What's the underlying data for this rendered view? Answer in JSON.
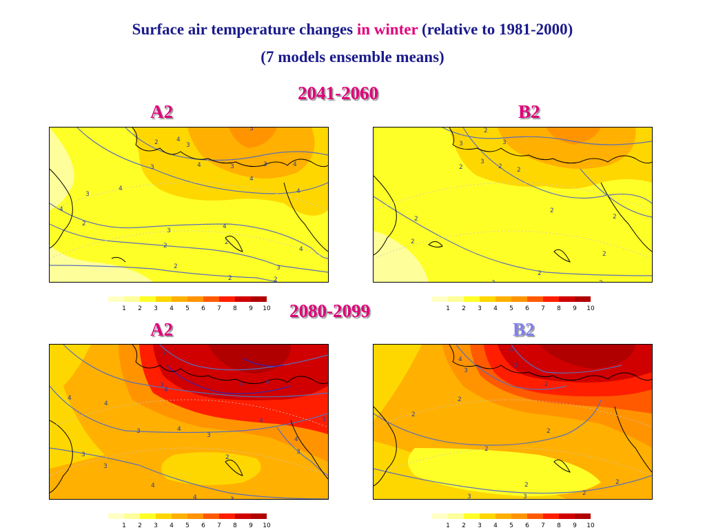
{
  "title": {
    "line1_a": "Surface air temperature changes ",
    "line1_highlight": "in winter",
    "line1_b": " (relative to 1981-2000)",
    "line2": "(7 models ensemble means)"
  },
  "periods": [
    "2041-2060",
    "2080-2099"
  ],
  "scenarios": [
    "A2",
    "B2",
    "A2",
    "B2"
  ],
  "colorbar": {
    "labels": [
      "1",
      "2",
      "3",
      "4",
      "5",
      "6",
      "7",
      "8",
      "9",
      "10"
    ],
    "colors": [
      "#ffffc4",
      "#fefe9a",
      "#ffff28",
      "#ffd700",
      "#ffb000",
      "#ff9400",
      "#ff5a00",
      "#ff1e00",
      "#d00000",
      "#b00000"
    ]
  },
  "contour_color": "#5a6eb8",
  "chart_data": [
    {
      "type": "heatmap",
      "period": "2041-2060",
      "scenario": "A2",
      "unit_scale": [
        1,
        10
      ],
      "contour_labels": [
        "3",
        "2",
        "4",
        "3",
        "3",
        "4",
        "3",
        "4",
        "4",
        "3",
        "4",
        "4",
        "4",
        "3",
        "2",
        "3",
        "4",
        "2",
        "2",
        "4",
        "2",
        "3",
        "2",
        "2"
      ],
      "colorbar_labels": [
        "1",
        "2",
        "3",
        "4",
        "5",
        "6",
        "7",
        "8",
        "9",
        "10"
      ]
    },
    {
      "type": "heatmap",
      "period": "2041-2060",
      "scenario": "B2",
      "unit_scale": [
        1,
        10
      ],
      "contour_labels": [
        "2",
        "3",
        "3",
        "2",
        "2",
        "3",
        "2",
        "2",
        "2",
        "2",
        "2",
        "2",
        "2",
        "3",
        "2"
      ],
      "colorbar_labels": [
        "1",
        "2",
        "3",
        "4",
        "5",
        "6",
        "7",
        "8",
        "9",
        "10"
      ]
    },
    {
      "type": "heatmap",
      "period": "2080-2099",
      "scenario": "A2",
      "unit_scale": [
        1,
        10
      ],
      "contour_labels": [
        "2",
        "3",
        "4",
        "4",
        "4",
        "4",
        "4",
        "4",
        "3",
        "3",
        "4",
        "3",
        "4",
        "3",
        "3",
        "2",
        "3",
        "4",
        "4",
        "3"
      ],
      "colorbar_labels": [
        "1",
        "2",
        "3",
        "4",
        "5",
        "6",
        "7",
        "8",
        "9",
        "10"
      ]
    },
    {
      "type": "heatmap",
      "period": "2080-2099",
      "scenario": "B2",
      "unit_scale": [
        1,
        10
      ],
      "contour_labels": [
        "4",
        "4",
        "3",
        "3",
        "2",
        "2",
        "2",
        "2",
        "2",
        "2",
        "2",
        "3",
        "3",
        "2"
      ],
      "colorbar_labels": [
        "1",
        "2",
        "3",
        "4",
        "5",
        "6",
        "7",
        "8",
        "9",
        "10"
      ]
    }
  ]
}
